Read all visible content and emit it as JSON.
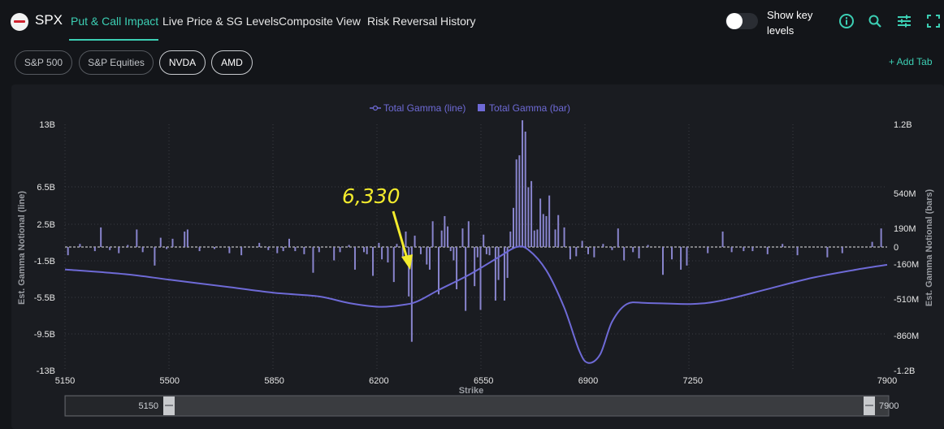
{
  "header": {
    "ticker": "SPX",
    "tabs": [
      {
        "label": "Put & Call Impact",
        "active": true
      },
      {
        "label": "Live Price & SG Levels"
      },
      {
        "label": "Composite View"
      },
      {
        "label": "Risk Reversal"
      },
      {
        "label": "History"
      }
    ],
    "key_levels_label": "Show key levels",
    "key_levels_on": false,
    "icons": [
      "info-icon",
      "search-icon",
      "sliders-icon",
      "fullscreen-icon"
    ]
  },
  "chips": [
    {
      "label": "S&P 500",
      "selected": false
    },
    {
      "label": "S&P Equities",
      "selected": false
    },
    {
      "label": "NVDA",
      "selected": true
    },
    {
      "label": "AMD",
      "selected": true
    }
  ],
  "add_tab_label": "+ Add Tab",
  "colors": {
    "accent": "#3ccfb4",
    "series": "#6e6ad6",
    "bars": "#8884cc",
    "annotation": "#f3eb2d"
  },
  "chart_data": {
    "type": "line+bar",
    "legend": [
      "Total Gamma (line)",
      "Total Gamma (bar)"
    ],
    "xlabel": "Strike",
    "ylabel_left": "Est. Gamma Notional (line)",
    "ylabel_right": "Est. Gamma Notional (bars)",
    "x_ticks": [
      "5150",
      "5500",
      "5850",
      "6200",
      "6550",
      "6900",
      "7250",
      "7900"
    ],
    "x_range": [
      5150,
      7900
    ],
    "left_ticks": [
      "13B",
      "6.5B",
      "2.5B",
      "-1.5B",
      "-5.5B",
      "-9.5B",
      "-13B"
    ],
    "right_ticks": [
      "1.2B",
      "540M",
      "190M",
      "0",
      "-160M",
      "-510M",
      "-860M",
      "-1.2B"
    ],
    "annotation": {
      "text": "6,330",
      "strike": 6330
    },
    "series": [
      {
        "name": "Total Gamma (line)",
        "unit": "B",
        "points": [
          [
            5150,
            -2.4
          ],
          [
            5350,
            -2.9
          ],
          [
            5500,
            -3.5
          ],
          [
            5700,
            -4.3
          ],
          [
            5850,
            -4.9
          ],
          [
            6000,
            -5.3
          ],
          [
            6100,
            -6.0
          ],
          [
            6200,
            -6.4
          ],
          [
            6280,
            -6.2
          ],
          [
            6330,
            -5.8
          ],
          [
            6400,
            -4.6
          ],
          [
            6500,
            -3.0
          ],
          [
            6600,
            -1.1
          ],
          [
            6660,
            0.0
          ],
          [
            6700,
            -0.3
          ],
          [
            6760,
            -2.5
          ],
          [
            6820,
            -6.5
          ],
          [
            6870,
            -11.1
          ],
          [
            6900,
            -12.4
          ],
          [
            6940,
            -11.5
          ],
          [
            6980,
            -8.0
          ],
          [
            7030,
            -6.1
          ],
          [
            7100,
            -6.0
          ],
          [
            7250,
            -6.1
          ],
          [
            7350,
            -5.7
          ],
          [
            7500,
            -4.5
          ],
          [
            7650,
            -3.3
          ],
          [
            7800,
            -2.4
          ],
          [
            7900,
            -1.9
          ]
        ]
      },
      {
        "name": "Total Gamma (bar)",
        "unit": "M",
        "points": [
          [
            5160,
            -80
          ],
          [
            5200,
            30
          ],
          [
            5250,
            -40
          ],
          [
            5270,
            190
          ],
          [
            5300,
            -30
          ],
          [
            5330,
            -60
          ],
          [
            5360,
            20
          ],
          [
            5390,
            170
          ],
          [
            5410,
            -50
          ],
          [
            5450,
            -180
          ],
          [
            5470,
            90
          ],
          [
            5490,
            -20
          ],
          [
            5510,
            80
          ],
          [
            5550,
            150
          ],
          [
            5560,
            170
          ],
          [
            5600,
            -40
          ],
          [
            5650,
            -20
          ],
          [
            5700,
            -60
          ],
          [
            5740,
            -80
          ],
          [
            5800,
            40
          ],
          [
            5830,
            -30
          ],
          [
            5860,
            -60
          ],
          [
            5880,
            -40
          ],
          [
            5900,
            80
          ],
          [
            5920,
            -40
          ],
          [
            5950,
            -70
          ],
          [
            5980,
            -250
          ],
          [
            6000,
            -50
          ],
          [
            6050,
            -130
          ],
          [
            6070,
            -50
          ],
          [
            6100,
            20
          ],
          [
            6120,
            -220
          ],
          [
            6150,
            -50
          ],
          [
            6160,
            -70
          ],
          [
            6180,
            -280
          ],
          [
            6200,
            40
          ],
          [
            6210,
            -120
          ],
          [
            6230,
            -150
          ],
          [
            6250,
            -340
          ],
          [
            6260,
            30
          ],
          [
            6280,
            -100
          ],
          [
            6290,
            150
          ],
          [
            6300,
            -480
          ],
          [
            6310,
            -920
          ],
          [
            6320,
            110
          ],
          [
            6340,
            -70
          ],
          [
            6360,
            -170
          ],
          [
            6370,
            -220
          ],
          [
            6380,
            250
          ],
          [
            6400,
            -460
          ],
          [
            6410,
            160
          ],
          [
            6420,
            300
          ],
          [
            6430,
            200
          ],
          [
            6440,
            -40
          ],
          [
            6450,
            -130
          ],
          [
            6460,
            -410
          ],
          [
            6480,
            180
          ],
          [
            6490,
            -620
          ],
          [
            6500,
            250
          ],
          [
            6520,
            -380
          ],
          [
            6530,
            -100
          ],
          [
            6540,
            -610
          ],
          [
            6550,
            120
          ],
          [
            6560,
            -70
          ],
          [
            6570,
            -80
          ],
          [
            6590,
            -520
          ],
          [
            6600,
            -320
          ],
          [
            6620,
            -520
          ],
          [
            6630,
            -300
          ],
          [
            6640,
            150
          ],
          [
            6650,
            380
          ],
          [
            6660,
            850
          ],
          [
            6670,
            890
          ],
          [
            6680,
            1230
          ],
          [
            6690,
            1120
          ],
          [
            6700,
            580
          ],
          [
            6710,
            640
          ],
          [
            6720,
            160
          ],
          [
            6730,
            170
          ],
          [
            6740,
            470
          ],
          [
            6750,
            320
          ],
          [
            6760,
            300
          ],
          [
            6770,
            500
          ],
          [
            6790,
            170
          ],
          [
            6800,
            310
          ],
          [
            6820,
            190
          ],
          [
            6840,
            -120
          ],
          [
            6860,
            -90
          ],
          [
            6880,
            60
          ],
          [
            6900,
            -70
          ],
          [
            6920,
            -100
          ],
          [
            6950,
            30
          ],
          [
            6980,
            -30
          ],
          [
            7000,
            180
          ],
          [
            7020,
            -130
          ],
          [
            7050,
            -50
          ],
          [
            7070,
            -110
          ],
          [
            7100,
            20
          ],
          [
            7150,
            -270
          ],
          [
            7180,
            -120
          ],
          [
            7210,
            -220
          ],
          [
            7230,
            -180
          ],
          [
            7300,
            -60
          ],
          [
            7350,
            150
          ],
          [
            7380,
            -50
          ],
          [
            7420,
            -40
          ],
          [
            7450,
            -40
          ],
          [
            7500,
            -70
          ],
          [
            7550,
            30
          ],
          [
            7600,
            -80
          ],
          [
            7700,
            -100
          ],
          [
            7750,
            -60
          ],
          [
            7850,
            50
          ],
          [
            7880,
            180
          ]
        ]
      }
    ],
    "range_slider": {
      "min_label": "5150",
      "max_label": "7900"
    }
  }
}
